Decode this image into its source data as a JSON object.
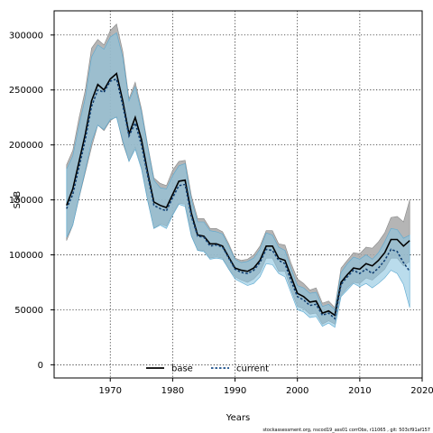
{
  "chart_data": {
    "type": "area",
    "xlabel": "Years",
    "ylabel": "SSB",
    "xlim": [
      1961,
      2020
    ],
    "ylim": [
      -12000,
      322000
    ],
    "x_ticks": [
      1970,
      1980,
      1990,
      2000,
      2010,
      2020
    ],
    "y_ticks": [
      0,
      50000,
      100000,
      150000,
      200000,
      250000,
      300000
    ],
    "grid": true,
    "legend_position": "bottom-center",
    "footer": "stockassessment.org, nscod19_ass01 corrObs, r11065 , git: 503cf91af157",
    "colors": {
      "base_band": "#a8a8a8",
      "current_band": "#8cc4e0",
      "base_line": "#000000",
      "current_line": "#1a4f8a"
    },
    "x": [
      1963,
      1964,
      1965,
      1966,
      1967,
      1968,
      1969,
      1970,
      1971,
      1972,
      1973,
      1974,
      1975,
      1976,
      1977,
      1978,
      1979,
      1980,
      1981,
      1982,
      1983,
      1984,
      1985,
      1986,
      1987,
      1988,
      1989,
      1990,
      1991,
      1992,
      1993,
      1994,
      1995,
      1996,
      1997,
      1998,
      1999,
      2000,
      2001,
      2002,
      2003,
      2004,
      2005,
      2006,
      2007,
      2008,
      2009,
      2010,
      2011,
      2012,
      2013,
      2014,
      2015,
      2016,
      2017,
      2018
    ],
    "series": [
      {
        "name": "base",
        "values": [
          145000,
          160000,
          185000,
          210000,
          240000,
          255000,
          250000,
          260000,
          265000,
          240000,
          210000,
          225000,
          205000,
          175000,
          148000,
          145000,
          143000,
          155000,
          167000,
          168000,
          138000,
          118000,
          117000,
          110000,
          110000,
          108000,
          98000,
          88000,
          86000,
          85000,
          88000,
          95000,
          108000,
          108000,
          97000,
          95000,
          80000,
          65000,
          62000,
          57000,
          58000,
          47000,
          49000,
          45000,
          75000,
          82000,
          88000,
          87000,
          92000,
          90000,
          95000,
          102000,
          114000,
          114000,
          108000,
          113000
        ],
        "lower": [
          113000,
          127000,
          152000,
          175000,
          198000,
          218000,
          213000,
          222000,
          226000,
          202000,
          185000,
          198000,
          180000,
          150000,
          124000,
          128000,
          126000,
          137000,
          147000,
          146000,
          118000,
          104000,
          104000,
          97000,
          98000,
          97000,
          87000,
          80000,
          77000,
          75000,
          78000,
          84000,
          97000,
          97000,
          85000,
          85000,
          68000,
          53000,
          51000,
          46000,
          47000,
          37000,
          40000,
          37000,
          63000,
          70000,
          75000,
          74000,
          79000,
          77000,
          82000,
          87000,
          97000,
          97000,
          90000,
          94000
        ],
        "upper": [
          182000,
          195000,
          225000,
          250000,
          288000,
          296000,
          291000,
          304000,
          310000,
          285000,
          242000,
          257000,
          233000,
          200000,
          170000,
          165000,
          163000,
          177000,
          185000,
          186000,
          154000,
          133000,
          133000,
          124000,
          124000,
          121000,
          110000,
          97000,
          95000,
          96000,
          100000,
          108000,
          122000,
          122000,
          110000,
          109000,
          92000,
          78000,
          74000,
          68000,
          70000,
          56000,
          58000,
          52000,
          88000,
          95000,
          102000,
          101000,
          107000,
          106000,
          112000,
          120000,
          134000,
          135000,
          130000,
          150000
        ]
      },
      {
        "name": "current",
        "values": [
          142000,
          155000,
          180000,
          205000,
          235000,
          250000,
          248000,
          258000,
          260000,
          236000,
          208000,
          220000,
          200000,
          172000,
          145000,
          142000,
          140000,
          152000,
          163000,
          164000,
          135000,
          117000,
          116000,
          108000,
          109000,
          107000,
          97000,
          87000,
          84000,
          83000,
          86000,
          93000,
          105000,
          104000,
          95000,
          92000,
          76000,
          62000,
          59000,
          54000,
          55000,
          45000,
          47000,
          42000,
          73000,
          80000,
          86000,
          83000,
          87000,
          83000,
          88000,
          95000,
          105000,
          103000,
          93000,
          85000
        ],
        "lower": [
          116000,
          127000,
          153000,
          177000,
          203000,
          218000,
          214000,
          223000,
          225000,
          204000,
          185000,
          196000,
          178000,
          149000,
          124000,
          127000,
          124000,
          136000,
          146000,
          144000,
          117000,
          104000,
          103000,
          96000,
          97000,
          96000,
          87000,
          78000,
          75000,
          72000,
          74000,
          80000,
          92000,
          91000,
          83000,
          80000,
          65000,
          50000,
          48000,
          43000,
          44000,
          35000,
          38000,
          34000,
          62000,
          68000,
          74000,
          71000,
          74000,
          70000,
          74000,
          79000,
          86000,
          83000,
          73000,
          52000
        ],
        "upper": [
          178000,
          190000,
          218000,
          243000,
          280000,
          291000,
          287000,
          298000,
          302000,
          280000,
          240000,
          253000,
          230000,
          198000,
          168000,
          161000,
          160000,
          172000,
          181000,
          183000,
          150000,
          130000,
          130000,
          122000,
          121000,
          119000,
          108000,
          96000,
          93000,
          94000,
          97000,
          105000,
          120000,
          118000,
          107000,
          104000,
          87000,
          72000,
          70000,
          65000,
          66000,
          53000,
          55000,
          50000,
          84000,
          92000,
          98000,
          96000,
          100000,
          96000,
          102000,
          112000,
          124000,
          123000,
          115000,
          118000
        ]
      }
    ]
  }
}
